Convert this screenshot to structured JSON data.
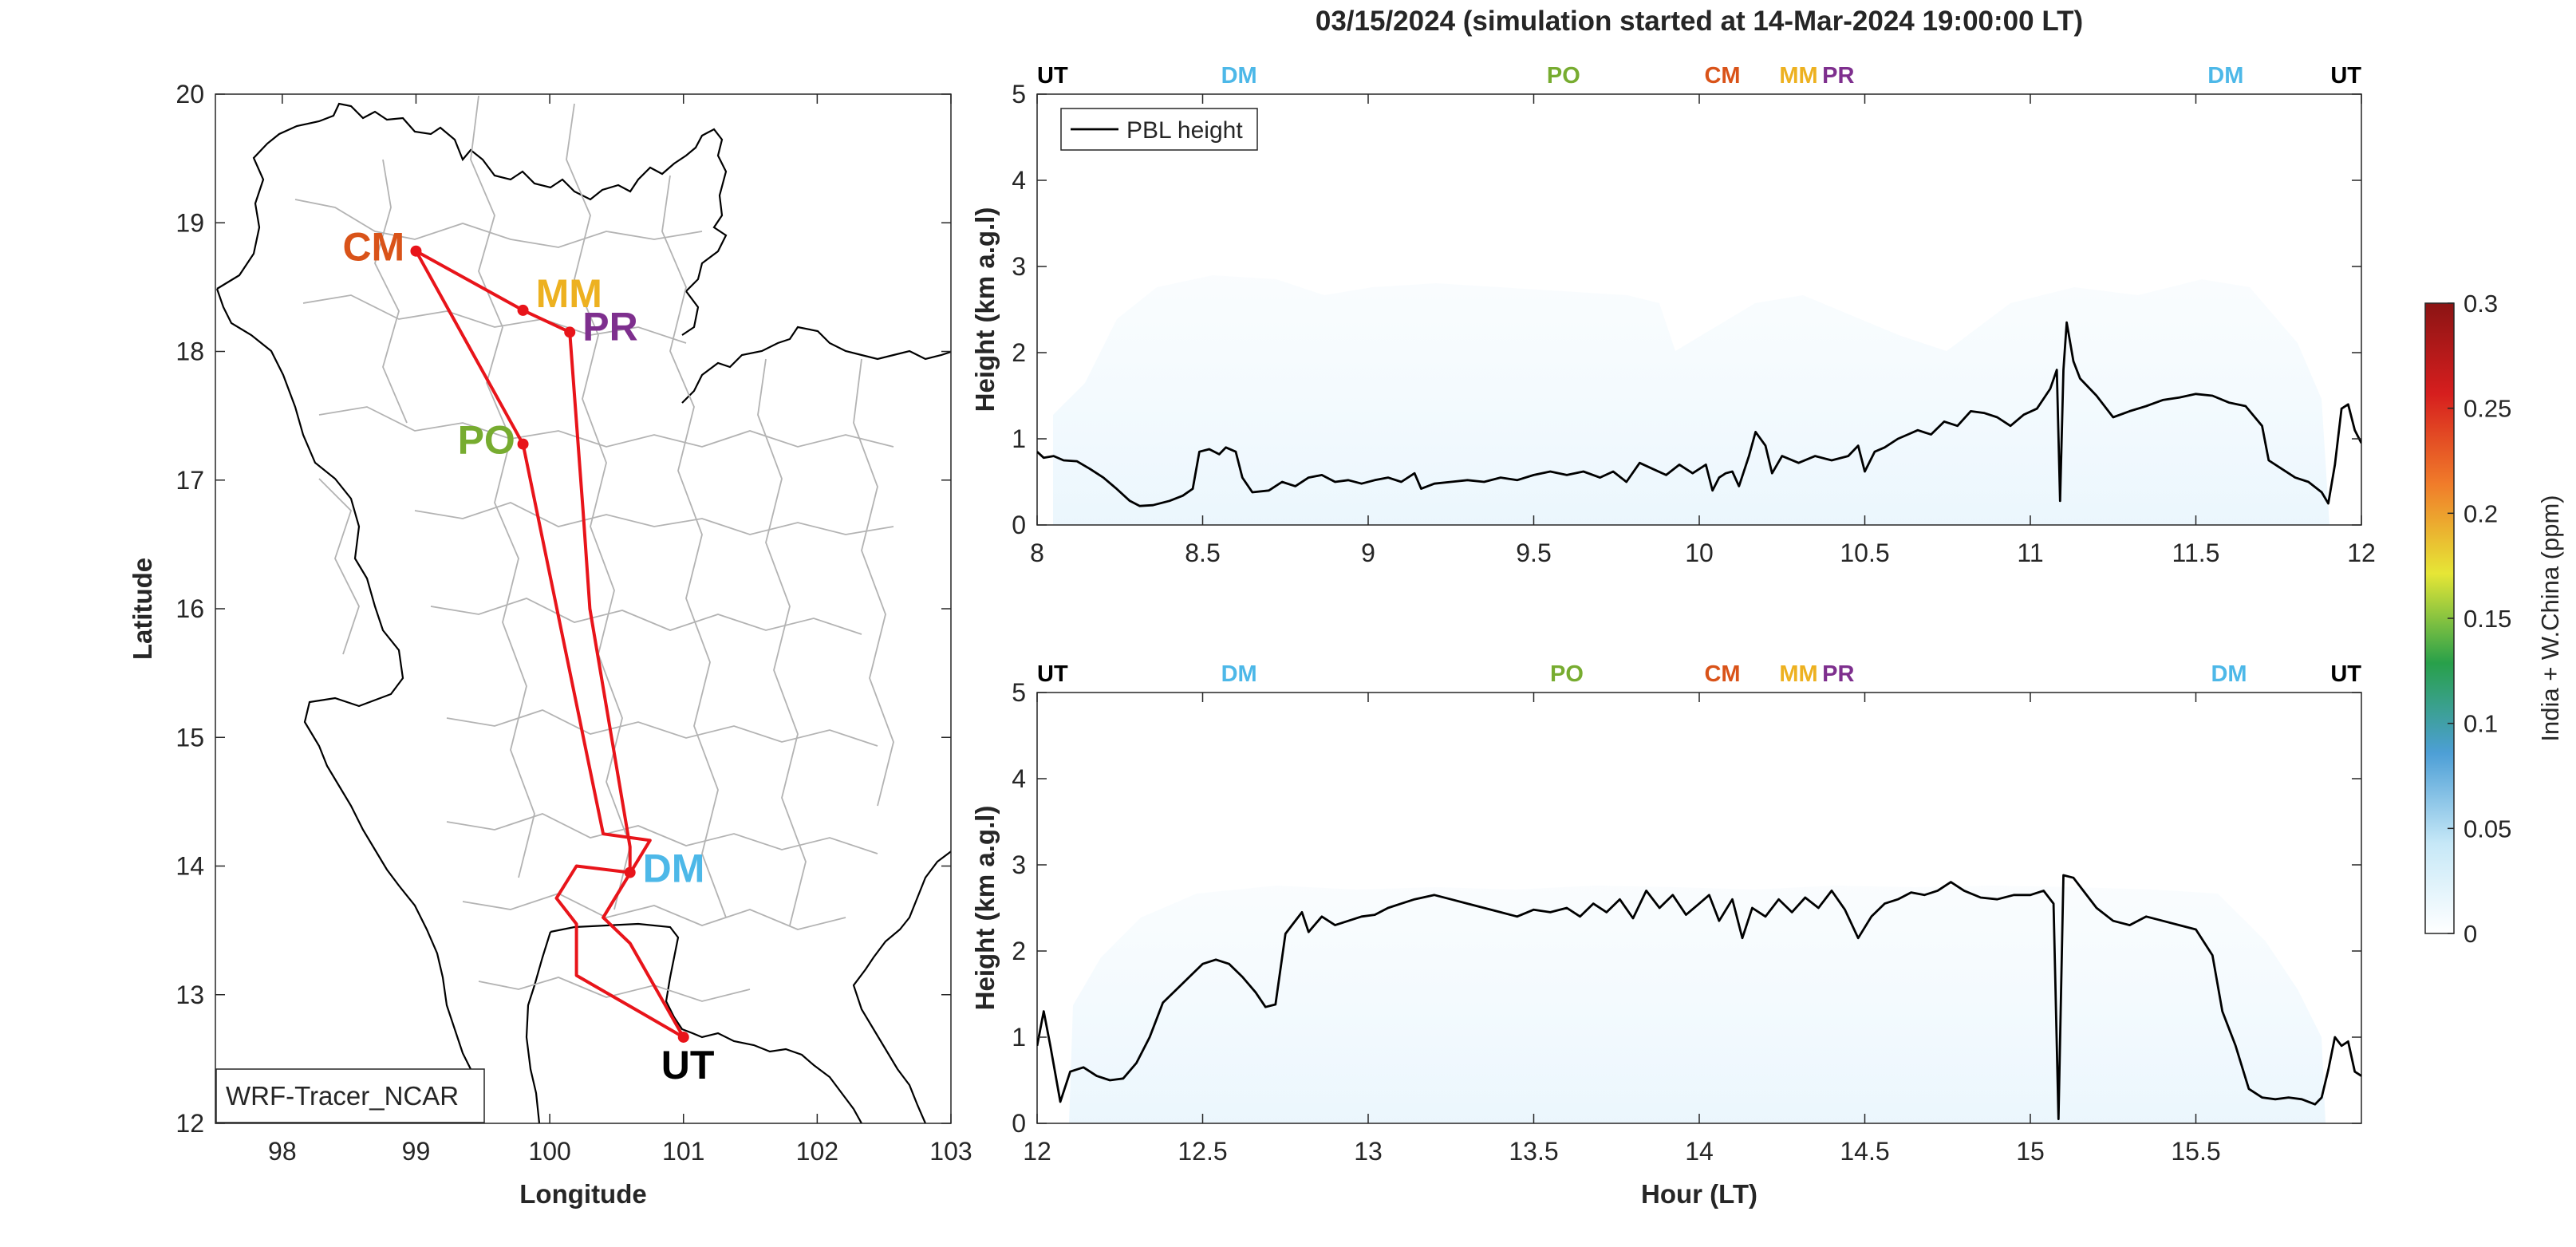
{
  "colors": {
    "route": "#e8141a",
    "border": "#000000",
    "province": "#b3b3b3",
    "UT": "#000000",
    "DM": "#4db8e8",
    "PO": "#77ac30",
    "CM": "#d95319",
    "MM": "#edb120",
    "PR": "#7e2f8e",
    "pbl": "#000000",
    "colorbar_stops": [
      "#ffffff",
      "#c6e8f7",
      "#4d9fd6",
      "#28a04a",
      "#e6e636",
      "#f07b2a",
      "#d61e1e",
      "#8b1414"
    ]
  },
  "chart_data": [
    {
      "type": "line",
      "panel": "map",
      "xlabel": "Longitude",
      "ylabel": "Latitude",
      "xlim": [
        97.5,
        103
      ],
      "ylim": [
        12,
        20
      ],
      "xticks": [
        98,
        99,
        100,
        101,
        102,
        103
      ],
      "yticks": [
        12,
        13,
        14,
        15,
        16,
        17,
        18,
        19,
        20
      ],
      "legend_text": "WRF-Tracer_NCAR",
      "route": [
        [
          101.0,
          12.67
        ],
        [
          100.7,
          12.85
        ],
        [
          100.2,
          13.15
        ],
        [
          100.2,
          13.55
        ],
        [
          100.05,
          13.75
        ],
        [
          100.2,
          14.0
        ],
        [
          100.6,
          13.95
        ],
        [
          100.6,
          14.15
        ],
        [
          100.3,
          16.0
        ],
        [
          100.25,
          16.75
        ],
        [
          100.15,
          18.15
        ],
        [
          99.8,
          18.32
        ],
        [
          99.0,
          18.78
        ],
        [
          99.8,
          17.28
        ],
        [
          100.4,
          14.25
        ],
        [
          100.75,
          14.2
        ],
        [
          100.4,
          13.6
        ],
        [
          100.6,
          13.4
        ],
        [
          101.0,
          12.67
        ]
      ],
      "stations": [
        {
          "name": "CM",
          "lon": 99.0,
          "lat": 18.78
        },
        {
          "name": "MM",
          "lon": 99.8,
          "lat": 18.32
        },
        {
          "name": "PR",
          "lon": 100.15,
          "lat": 18.15
        },
        {
          "name": "PO",
          "lon": 99.8,
          "lat": 17.28
        },
        {
          "name": "DM",
          "lon": 100.6,
          "lat": 13.95
        },
        {
          "name": "UT",
          "lon": 101.0,
          "lat": 12.67
        }
      ]
    },
    {
      "type": "area",
      "panel": "top",
      "title": "03/15/2024 (simulation started at 14-Mar-2024 19:00:00 LT)",
      "xlabel": "",
      "ylabel": "Height (km a.g.l)",
      "xlim": [
        8,
        12
      ],
      "ylim": [
        0,
        5
      ],
      "xticks": [
        8,
        8.5,
        9,
        9.5,
        10,
        10.5,
        11,
        11.5,
        12
      ],
      "yticks": [
        0,
        1,
        2,
        3,
        4,
        5
      ],
      "legend": [
        "PBL height"
      ],
      "stations_top": [
        {
          "name": "UT",
          "x": 8.0
        },
        {
          "name": "DM",
          "x": 8.61
        },
        {
          "name": "PO",
          "x": 9.59
        },
        {
          "name": "CM",
          "x": 10.07
        },
        {
          "name": "MM",
          "x": 10.3
        },
        {
          "name": "PR",
          "x": 10.42
        },
        {
          "name": "DM",
          "x": 11.59
        },
        {
          "name": "UT",
          "x": 12.0
        }
      ],
      "pbl": [
        [
          8.0,
          0.85
        ],
        [
          8.02,
          0.78
        ],
        [
          8.05,
          0.8
        ],
        [
          8.08,
          0.75
        ],
        [
          8.12,
          0.74
        ],
        [
          8.16,
          0.65
        ],
        [
          8.2,
          0.55
        ],
        [
          8.24,
          0.42
        ],
        [
          8.28,
          0.28
        ],
        [
          8.31,
          0.22
        ],
        [
          8.35,
          0.23
        ],
        [
          8.4,
          0.28
        ],
        [
          8.44,
          0.34
        ],
        [
          8.47,
          0.42
        ],
        [
          8.49,
          0.85
        ],
        [
          8.52,
          0.88
        ],
        [
          8.55,
          0.82
        ],
        [
          8.57,
          0.9
        ],
        [
          8.6,
          0.85
        ],
        [
          8.62,
          0.55
        ],
        [
          8.65,
          0.38
        ],
        [
          8.7,
          0.4
        ],
        [
          8.74,
          0.5
        ],
        [
          8.78,
          0.45
        ],
        [
          8.82,
          0.55
        ],
        [
          8.86,
          0.58
        ],
        [
          8.9,
          0.5
        ],
        [
          8.94,
          0.52
        ],
        [
          8.98,
          0.48
        ],
        [
          9.02,
          0.52
        ],
        [
          9.06,
          0.55
        ],
        [
          9.1,
          0.5
        ],
        [
          9.14,
          0.6
        ],
        [
          9.16,
          0.42
        ],
        [
          9.2,
          0.48
        ],
        [
          9.25,
          0.5
        ],
        [
          9.3,
          0.52
        ],
        [
          9.35,
          0.5
        ],
        [
          9.4,
          0.55
        ],
        [
          9.45,
          0.52
        ],
        [
          9.5,
          0.58
        ],
        [
          9.55,
          0.62
        ],
        [
          9.6,
          0.58
        ],
        [
          9.65,
          0.62
        ],
        [
          9.7,
          0.55
        ],
        [
          9.74,
          0.62
        ],
        [
          9.78,
          0.5
        ],
        [
          9.82,
          0.72
        ],
        [
          9.86,
          0.65
        ],
        [
          9.9,
          0.58
        ],
        [
          9.94,
          0.7
        ],
        [
          9.98,
          0.6
        ],
        [
          10.02,
          0.7
        ],
        [
          10.04,
          0.4
        ],
        [
          10.06,
          0.55
        ],
        [
          10.08,
          0.6
        ],
        [
          10.1,
          0.62
        ],
        [
          10.12,
          0.45
        ],
        [
          10.15,
          0.8
        ],
        [
          10.17,
          1.08
        ],
        [
          10.2,
          0.92
        ],
        [
          10.22,
          0.6
        ],
        [
          10.25,
          0.8
        ],
        [
          10.3,
          0.72
        ],
        [
          10.35,
          0.8
        ],
        [
          10.4,
          0.75
        ],
        [
          10.45,
          0.8
        ],
        [
          10.48,
          0.92
        ],
        [
          10.5,
          0.62
        ],
        [
          10.53,
          0.85
        ],
        [
          10.56,
          0.9
        ],
        [
          10.6,
          1.0
        ],
        [
          10.63,
          1.05
        ],
        [
          10.66,
          1.1
        ],
        [
          10.7,
          1.05
        ],
        [
          10.74,
          1.2
        ],
        [
          10.78,
          1.15
        ],
        [
          10.82,
          1.32
        ],
        [
          10.86,
          1.3
        ],
        [
          10.9,
          1.25
        ],
        [
          10.94,
          1.15
        ],
        [
          10.98,
          1.28
        ],
        [
          11.02,
          1.35
        ],
        [
          11.06,
          1.58
        ],
        [
          11.08,
          1.8
        ],
        [
          11.09,
          0.28
        ],
        [
          11.1,
          1.8
        ],
        [
          11.11,
          2.35
        ],
        [
          11.13,
          1.9
        ],
        [
          11.15,
          1.7
        ],
        [
          11.2,
          1.5
        ],
        [
          11.25,
          1.25
        ],
        [
          11.3,
          1.32
        ],
        [
          11.35,
          1.38
        ],
        [
          11.4,
          1.45
        ],
        [
          11.45,
          1.48
        ],
        [
          11.5,
          1.52
        ],
        [
          11.55,
          1.5
        ],
        [
          11.6,
          1.42
        ],
        [
          11.65,
          1.38
        ],
        [
          11.7,
          1.15
        ],
        [
          11.72,
          0.75
        ],
        [
          11.76,
          0.65
        ],
        [
          11.8,
          0.55
        ],
        [
          11.84,
          0.5
        ],
        [
          11.88,
          0.38
        ],
        [
          11.9,
          0.25
        ],
        [
          11.92,
          0.7
        ],
        [
          11.94,
          1.35
        ],
        [
          11.96,
          1.4
        ],
        [
          11.98,
          1.1
        ],
        [
          12.0,
          0.95
        ]
      ]
    },
    {
      "type": "area",
      "panel": "bottom",
      "xlabel": "Hour (LT)",
      "ylabel": "Height (km a.g.l)",
      "xlim": [
        12,
        16
      ],
      "ylim": [
        0,
        5
      ],
      "xticks": [
        12,
        12.5,
        13,
        13.5,
        14,
        14.5,
        15,
        15.5
      ],
      "yticks": [
        0,
        1,
        2,
        3,
        4,
        5
      ],
      "stations_top": [
        {
          "name": "UT",
          "x": 12.0
        },
        {
          "name": "DM",
          "x": 12.61
        },
        {
          "name": "PO",
          "x": 13.6
        },
        {
          "name": "CM",
          "x": 14.07
        },
        {
          "name": "MM",
          "x": 14.3
        },
        {
          "name": "PR",
          "x": 14.42
        },
        {
          "name": "DM",
          "x": 15.6
        },
        {
          "name": "UT",
          "x": 16.0
        }
      ],
      "pbl": [
        [
          12.0,
          0.9
        ],
        [
          12.02,
          1.3
        ],
        [
          12.04,
          0.9
        ],
        [
          12.07,
          0.25
        ],
        [
          12.1,
          0.6
        ],
        [
          12.14,
          0.65
        ],
        [
          12.18,
          0.55
        ],
        [
          12.22,
          0.5
        ],
        [
          12.26,
          0.52
        ],
        [
          12.3,
          0.7
        ],
        [
          12.34,
          1.0
        ],
        [
          12.38,
          1.4
        ],
        [
          12.42,
          1.55
        ],
        [
          12.46,
          1.7
        ],
        [
          12.5,
          1.85
        ],
        [
          12.54,
          1.9
        ],
        [
          12.58,
          1.85
        ],
        [
          12.62,
          1.7
        ],
        [
          12.66,
          1.52
        ],
        [
          12.69,
          1.35
        ],
        [
          12.72,
          1.38
        ],
        [
          12.75,
          2.2
        ],
        [
          12.77,
          2.3
        ],
        [
          12.8,
          2.45
        ],
        [
          12.82,
          2.22
        ],
        [
          12.86,
          2.4
        ],
        [
          12.9,
          2.3
        ],
        [
          12.94,
          2.35
        ],
        [
          12.98,
          2.4
        ],
        [
          13.02,
          2.42
        ],
        [
          13.06,
          2.5
        ],
        [
          13.1,
          2.55
        ],
        [
          13.14,
          2.6
        ],
        [
          13.2,
          2.65
        ],
        [
          13.25,
          2.6
        ],
        [
          13.3,
          2.55
        ],
        [
          13.35,
          2.5
        ],
        [
          13.4,
          2.45
        ],
        [
          13.45,
          2.4
        ],
        [
          13.5,
          2.48
        ],
        [
          13.55,
          2.45
        ],
        [
          13.6,
          2.5
        ],
        [
          13.64,
          2.4
        ],
        [
          13.68,
          2.55
        ],
        [
          13.72,
          2.45
        ],
        [
          13.76,
          2.6
        ],
        [
          13.8,
          2.38
        ],
        [
          13.84,
          2.7
        ],
        [
          13.88,
          2.5
        ],
        [
          13.92,
          2.65
        ],
        [
          13.96,
          2.42
        ],
        [
          14.0,
          2.55
        ],
        [
          14.03,
          2.65
        ],
        [
          14.06,
          2.35
        ],
        [
          14.1,
          2.6
        ],
        [
          14.13,
          2.15
        ],
        [
          14.16,
          2.5
        ],
        [
          14.2,
          2.4
        ],
        [
          14.24,
          2.6
        ],
        [
          14.28,
          2.45
        ],
        [
          14.32,
          2.62
        ],
        [
          14.36,
          2.5
        ],
        [
          14.4,
          2.7
        ],
        [
          14.44,
          2.48
        ],
        [
          14.48,
          2.15
        ],
        [
          14.52,
          2.4
        ],
        [
          14.56,
          2.55
        ],
        [
          14.6,
          2.6
        ],
        [
          14.64,
          2.68
        ],
        [
          14.68,
          2.65
        ],
        [
          14.72,
          2.7
        ],
        [
          14.76,
          2.8
        ],
        [
          14.8,
          2.7
        ],
        [
          14.85,
          2.62
        ],
        [
          14.9,
          2.6
        ],
        [
          14.95,
          2.65
        ],
        [
          15.0,
          2.65
        ],
        [
          15.04,
          2.7
        ],
        [
          15.07,
          2.55
        ],
        [
          15.085,
          0.05
        ],
        [
          15.1,
          2.88
        ],
        [
          15.13,
          2.85
        ],
        [
          15.16,
          2.7
        ],
        [
          15.2,
          2.5
        ],
        [
          15.25,
          2.35
        ],
        [
          15.3,
          2.3
        ],
        [
          15.35,
          2.4
        ],
        [
          15.4,
          2.35
        ],
        [
          15.45,
          2.3
        ],
        [
          15.5,
          2.25
        ],
        [
          15.55,
          1.95
        ],
        [
          15.58,
          1.3
        ],
        [
          15.62,
          0.9
        ],
        [
          15.66,
          0.4
        ],
        [
          15.7,
          0.3
        ],
        [
          15.74,
          0.28
        ],
        [
          15.78,
          0.3
        ],
        [
          15.82,
          0.28
        ],
        [
          15.86,
          0.22
        ],
        [
          15.88,
          0.3
        ],
        [
          15.9,
          0.62
        ],
        [
          15.92,
          1.0
        ],
        [
          15.94,
          0.9
        ],
        [
          15.96,
          0.95
        ],
        [
          15.98,
          0.6
        ],
        [
          16.0,
          0.55
        ]
      ]
    },
    {
      "type": "heatmap",
      "panel": "colorbar",
      "ylabel": "India + W.China (ppm)",
      "range": [
        0,
        0.3
      ],
      "ticks": [
        "0",
        "0.05",
        "0.1",
        "0.15",
        "0.2",
        "0.25",
        "0.3"
      ]
    }
  ]
}
